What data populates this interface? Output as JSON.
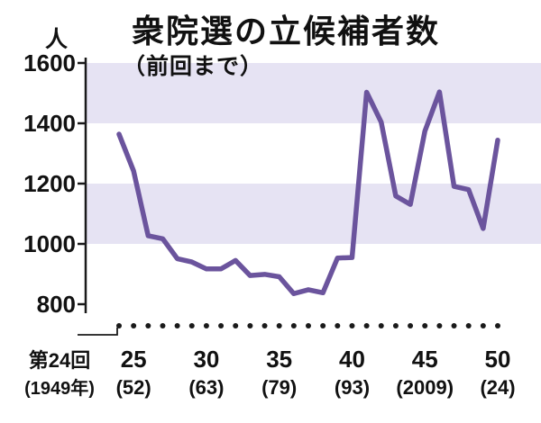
{
  "figure": {
    "title": "衆院選の立候補者数",
    "subtitle": "（前回まで）",
    "unit_label": "人"
  },
  "chart_data": {
    "type": "line",
    "title": "衆院選の立候補者数（前回まで）",
    "ylabel": "人",
    "xlabel": "",
    "ylim": [
      800,
      1600
    ],
    "yticks": [
      800,
      1000,
      1200,
      1400,
      1600
    ],
    "grid": false,
    "legend": false,
    "x_elections": [
      24,
      25,
      26,
      27,
      28,
      29,
      30,
      31,
      32,
      33,
      34,
      35,
      36,
      37,
      38,
      39,
      40,
      41,
      42,
      43,
      44,
      45,
      46,
      47,
      48,
      49,
      50
    ],
    "values": [
      1364,
      1242,
      1027,
      1017,
      951,
      940,
      917,
      917,
      945,
      895,
      899,
      891,
      835,
      848,
      838,
      953,
      955,
      1503,
      1404,
      1159,
      1131,
      1374,
      1504,
      1191,
      1180,
      1051,
      1344
    ],
    "x_ticks": [
      {
        "election": 24,
        "label": "第24回",
        "sub": "(1949年)"
      },
      {
        "election": 25,
        "label": "25",
        "sub": "(52)"
      },
      {
        "election": 30,
        "label": "30",
        "sub": "(63)"
      },
      {
        "election": 35,
        "label": "35",
        "sub": "(79)"
      },
      {
        "election": 40,
        "label": "40",
        "sub": "(93)"
      },
      {
        "election": 45,
        "label": "45",
        "sub": "(2009)"
      },
      {
        "election": 50,
        "label": "50",
        "sub": "(24)"
      }
    ],
    "bands": [
      [
        1400,
        1600
      ],
      [
        1000,
        1200
      ]
    ],
    "colors": {
      "line": "#6b549d",
      "band": "#e6e3f3",
      "axis": "#1a1a1a",
      "text": "#111111"
    }
  }
}
